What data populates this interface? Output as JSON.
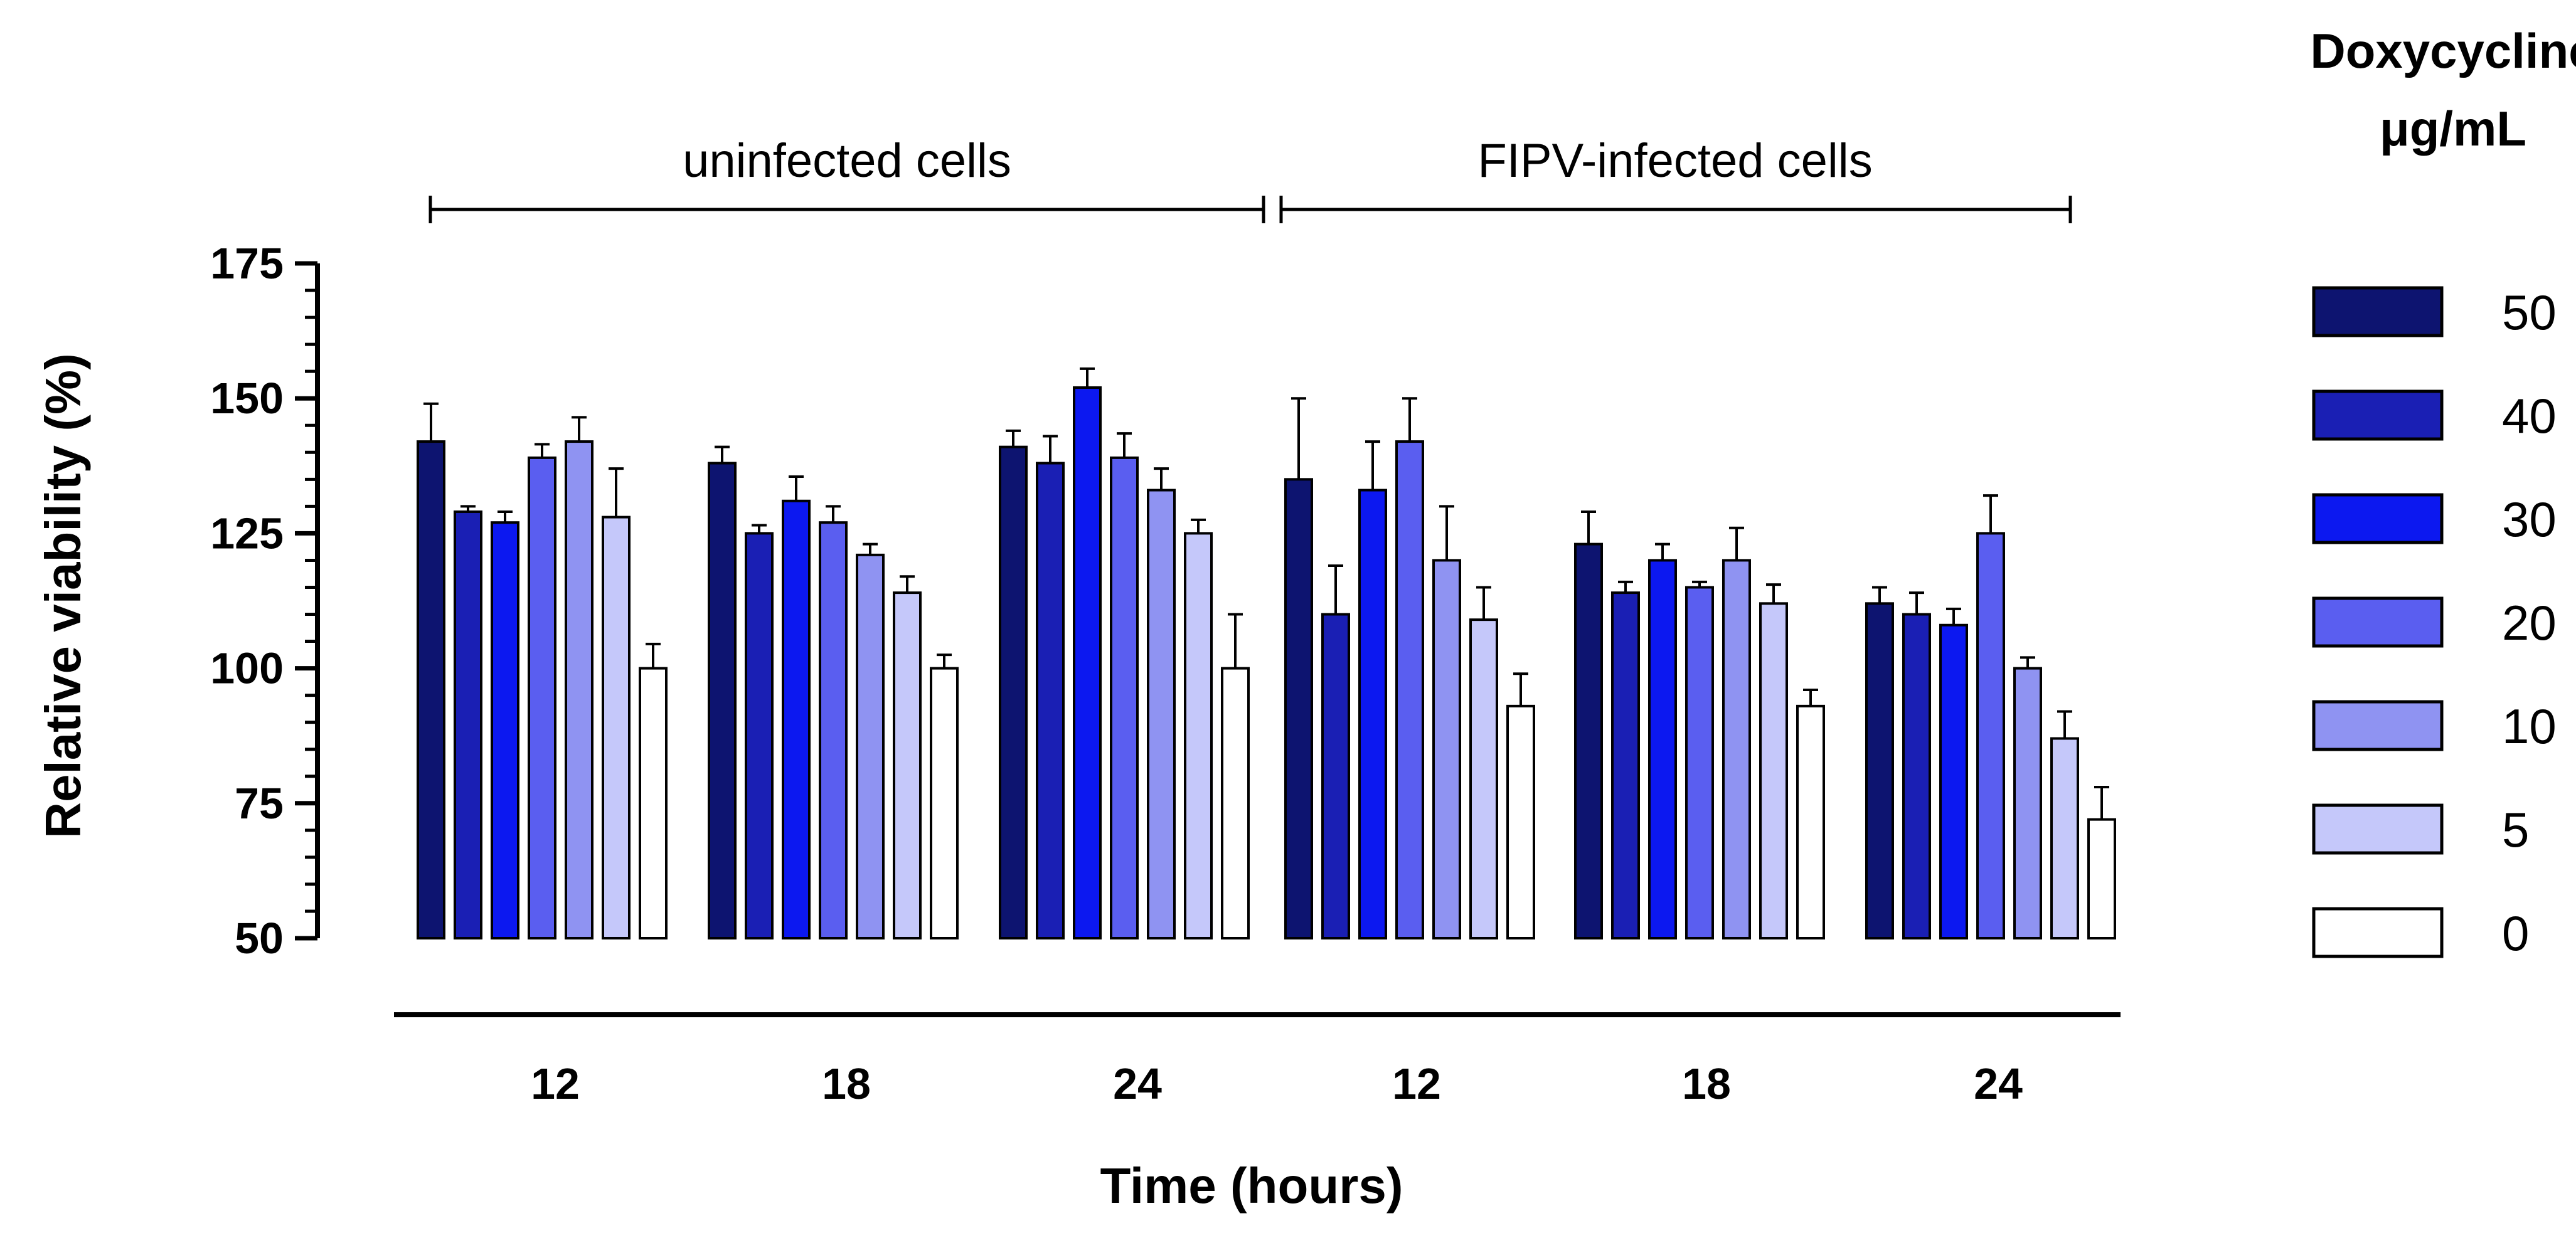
{
  "chart_data": {
    "type": "bar",
    "ylabel": "Relative viability (%)",
    "xlabel": "Time (hours)",
    "ylim": [
      50,
      175
    ],
    "yticks": [
      50,
      75,
      100,
      125,
      150,
      175
    ],
    "y_minor_step": 5,
    "categories": [
      "12",
      "18",
      "24",
      "12",
      "18",
      "24"
    ],
    "groups": [
      {
        "label": "uninfected cells",
        "span": [
          0,
          2
        ]
      },
      {
        "label": "FIPV-infected cells",
        "span": [
          3,
          5
        ]
      }
    ],
    "legend": {
      "title_line1": "Doxycycline",
      "title_line2": "μg/mL",
      "position": "right"
    },
    "series": [
      {
        "name": "50",
        "color": "#0d1470",
        "values": [
          142,
          138,
          141,
          135,
          123,
          112
        ],
        "errors": [
          7,
          3,
          3,
          15,
          6,
          3
        ]
      },
      {
        "name": "40",
        "color": "#1a1fb4",
        "values": [
          129,
          125,
          138,
          110,
          114,
          110
        ],
        "errors": [
          1,
          1.5,
          5,
          9,
          2,
          4
        ]
      },
      {
        "name": "30",
        "color": "#0c18f0",
        "values": [
          127,
          131,
          152,
          133,
          120,
          108
        ],
        "errors": [
          2,
          4.5,
          3.5,
          9,
          3,
          3
        ]
      },
      {
        "name": "20",
        "color": "#5a5ef0",
        "values": [
          139,
          127,
          139,
          142,
          115,
          125
        ],
        "errors": [
          2.5,
          3,
          4.5,
          8,
          1,
          7
        ]
      },
      {
        "name": "10",
        "color": "#8f93f2",
        "values": [
          142,
          121,
          133,
          120,
          120,
          100
        ],
        "errors": [
          4.5,
          2,
          4,
          10,
          6,
          2
        ]
      },
      {
        "name": "5",
        "color": "#c5c8fa",
        "values": [
          128,
          114,
          125,
          109,
          112,
          87
        ],
        "errors": [
          9,
          3,
          2.5,
          6,
          3.5,
          5
        ]
      },
      {
        "name": "0",
        "color": "#ffffff",
        "values": [
          100,
          100,
          100,
          93,
          93,
          72
        ],
        "errors": [
          4.5,
          2.5,
          10,
          6,
          3,
          6
        ]
      }
    ]
  }
}
